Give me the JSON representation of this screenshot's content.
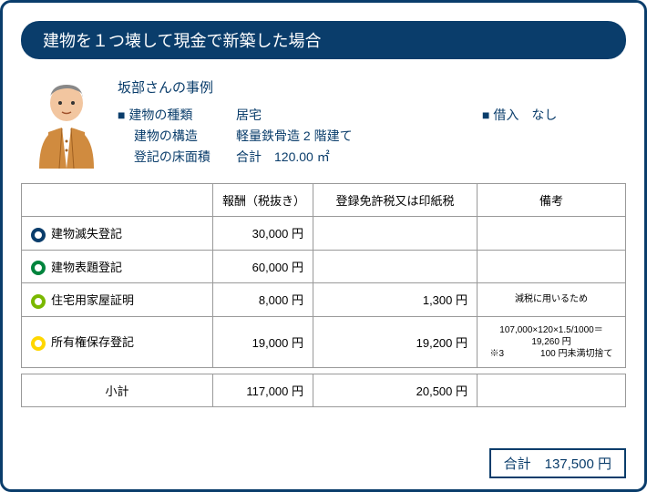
{
  "title": "建物を１つ壊して現金で新築した場合",
  "case": {
    "name": "坂部さんの事例",
    "items": [
      {
        "label": "■ 建物の種類",
        "value": "居宅"
      },
      {
        "label": "　 建物の構造",
        "value": "軽量鉄骨造 2 階建て"
      },
      {
        "label": "　 登記の床面積",
        "value": "合計　120.00 ㎡"
      }
    ],
    "loan_label": "■ 借入",
    "loan_value": "なし"
  },
  "table": {
    "headers": {
      "name": "",
      "fee": "報酬（税抜き）",
      "tax": "登録免許税又は印紙税",
      "note": "備考"
    },
    "rows": [
      {
        "bullet": "navy",
        "name": "建物滅失登記",
        "fee": "30,000 円",
        "tax": "",
        "note": ""
      },
      {
        "bullet": "green",
        "name": "建物表題登記",
        "fee": "60,000 円",
        "tax": "",
        "note": ""
      },
      {
        "bullet": "lime",
        "name": "住宅用家屋証明",
        "fee": "8,000 円",
        "tax": "1,300 円",
        "note": "減税に用いるため"
      },
      {
        "bullet": "yellow",
        "name": "所有権保存登記",
        "fee": "19,000 円",
        "tax": "19,200 円",
        "note": "107,000×120×1.5/1000＝19,260 円\n※3　　　　100 円未満切捨て"
      }
    ],
    "col_widths": {
      "name": 210,
      "fee": 110,
      "tax": 180,
      "note": 170
    }
  },
  "subtotal": {
    "label": "小計",
    "fee": "117,000 円",
    "tax": "20,500 円"
  },
  "total": {
    "label": "合計",
    "value": "137,500 円"
  },
  "colors": {
    "primary": "#0a3d6b"
  }
}
